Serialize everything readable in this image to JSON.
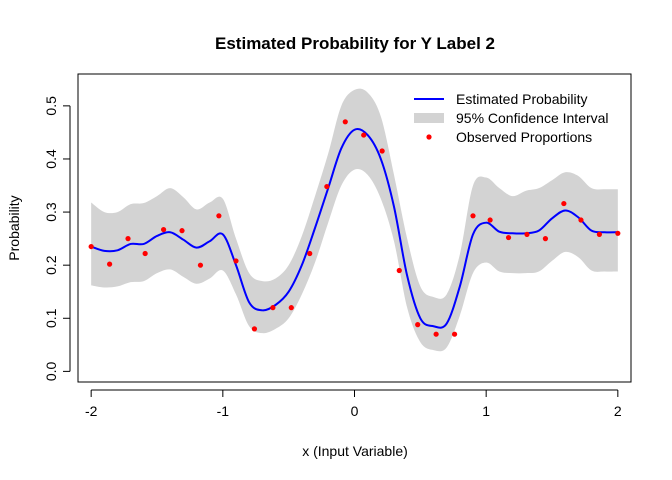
{
  "chart_data": {
    "type": "line",
    "title": "Estimated Probability for Y Label 2",
    "xlabel": "x (Input Variable)",
    "ylabel": "Probability",
    "xlim": [
      -2.1,
      2.1
    ],
    "ylim": [
      -0.02,
      0.56
    ],
    "x_ticks": [
      -2,
      -1,
      0,
      1,
      2
    ],
    "x_tick_labels": [
      "-2",
      "-1",
      "0",
      "1",
      "2"
    ],
    "y_ticks": [
      0.0,
      0.1,
      0.2,
      0.3,
      0.4,
      0.5
    ],
    "y_tick_labels": [
      "0.0",
      "0.1",
      "0.2",
      "0.3",
      "0.4",
      "0.5"
    ],
    "grid": false,
    "legend_position": "top-right",
    "legend": [
      {
        "label": "Estimated Probability",
        "kind": "line",
        "color": "#0000ff"
      },
      {
        "label": "95% Confidence Interval",
        "kind": "band",
        "color": "#d3d3d3"
      },
      {
        "label": "Observed Proportions",
        "kind": "point",
        "color": "#ff0000"
      }
    ],
    "colors": {
      "estimate": "#0000ff",
      "band": "#d3d3d3",
      "points": "#ff0000"
    },
    "estimate": {
      "name": "Estimated Probability",
      "x": [
        -2.0,
        -1.9,
        -1.8,
        -1.7,
        -1.6,
        -1.5,
        -1.4,
        -1.3,
        -1.2,
        -1.1,
        -1.0,
        -0.9,
        -0.8,
        -0.7,
        -0.6,
        -0.5,
        -0.4,
        -0.3,
        -0.2,
        -0.1,
        0.0,
        0.1,
        0.2,
        0.3,
        0.4,
        0.5,
        0.6,
        0.7,
        0.8,
        0.9,
        1.0,
        1.1,
        1.2,
        1.3,
        1.4,
        1.5,
        1.6,
        1.7,
        1.8,
        1.9,
        2.0
      ],
      "y": [
        0.235,
        0.227,
        0.228,
        0.24,
        0.24,
        0.255,
        0.262,
        0.248,
        0.233,
        0.245,
        0.258,
        0.2,
        0.13,
        0.115,
        0.125,
        0.15,
        0.2,
        0.27,
        0.345,
        0.42,
        0.455,
        0.445,
        0.4,
        0.31,
        0.18,
        0.1,
        0.085,
        0.09,
        0.16,
        0.258,
        0.28,
        0.263,
        0.26,
        0.26,
        0.265,
        0.288,
        0.303,
        0.29,
        0.265,
        0.262,
        0.262
      ]
    },
    "confidence_interval": {
      "name": "95% Confidence Interval",
      "x": [
        -2.0,
        -1.9,
        -1.8,
        -1.7,
        -1.6,
        -1.5,
        -1.4,
        -1.3,
        -1.2,
        -1.1,
        -1.0,
        -0.9,
        -0.8,
        -0.7,
        -0.6,
        -0.5,
        -0.4,
        -0.3,
        -0.2,
        -0.1,
        0.0,
        0.1,
        0.2,
        0.3,
        0.4,
        0.5,
        0.6,
        0.7,
        0.8,
        0.9,
        1.0,
        1.1,
        1.2,
        1.3,
        1.4,
        1.5,
        1.6,
        1.7,
        1.8,
        1.9,
        2.0
      ],
      "upper": [
        0.318,
        0.3,
        0.3,
        0.315,
        0.317,
        0.33,
        0.345,
        0.328,
        0.305,
        0.318,
        0.325,
        0.25,
        0.185,
        0.17,
        0.175,
        0.2,
        0.255,
        0.33,
        0.41,
        0.5,
        0.53,
        0.525,
        0.48,
        0.37,
        0.25,
        0.16,
        0.14,
        0.145,
        0.22,
        0.35,
        0.365,
        0.345,
        0.33,
        0.34,
        0.345,
        0.36,
        0.375,
        0.368,
        0.345,
        0.343,
        0.343
      ],
      "lower": [
        0.162,
        0.158,
        0.16,
        0.168,
        0.17,
        0.185,
        0.192,
        0.178,
        0.165,
        0.175,
        0.19,
        0.145,
        0.085,
        0.072,
        0.08,
        0.1,
        0.145,
        0.205,
        0.28,
        0.35,
        0.38,
        0.37,
        0.325,
        0.245,
        0.12,
        0.055,
        0.04,
        0.045,
        0.105,
        0.185,
        0.205,
        0.188,
        0.185,
        0.185,
        0.188,
        0.208,
        0.225,
        0.215,
        0.19,
        0.188,
        0.188
      ]
    },
    "observed": {
      "name": "Observed Proportions",
      "x": [
        -2.0,
        -1.86,
        -1.72,
        -1.59,
        -1.45,
        -1.31,
        -1.17,
        -1.03,
        -0.9,
        -0.76,
        -0.62,
        -0.48,
        -0.34,
        -0.21,
        -0.07,
        0.07,
        0.21,
        0.34,
        0.48,
        0.62,
        0.76,
        0.9,
        1.03,
        1.17,
        1.31,
        1.45,
        1.59,
        1.72,
        1.86,
        2.0
      ],
      "y": [
        0.235,
        0.202,
        0.25,
        0.222,
        0.267,
        0.265,
        0.2,
        0.293,
        0.208,
        0.08,
        0.12,
        0.12,
        0.222,
        0.348,
        0.47,
        0.445,
        0.415,
        0.19,
        0.088,
        0.07,
        0.07,
        0.293,
        0.285,
        0.252,
        0.258,
        0.25,
        0.316,
        0.285,
        0.258,
        0.26
      ]
    }
  }
}
